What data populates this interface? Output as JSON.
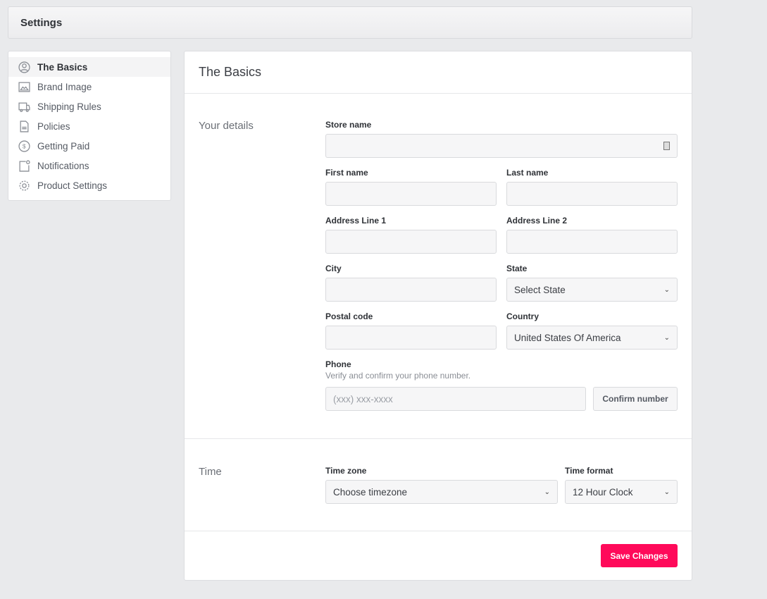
{
  "header": {
    "title": "Settings"
  },
  "sidebar": {
    "items": [
      {
        "label": "The Basics",
        "icon": "user-circle-icon"
      },
      {
        "label": "Brand Image",
        "icon": "image-icon"
      },
      {
        "label": "Shipping Rules",
        "icon": "truck-icon"
      },
      {
        "label": "Policies",
        "icon": "document-icon"
      },
      {
        "label": "Getting Paid",
        "icon": "dollar-circle-icon"
      },
      {
        "label": "Notifications",
        "icon": "notification-icon"
      },
      {
        "label": "Product Settings",
        "icon": "gear-icon"
      }
    ]
  },
  "main": {
    "title": "The Basics",
    "details": {
      "label": "Your details",
      "store_name": "Store name",
      "first_name": "First name",
      "last_name": "Last name",
      "address1": "Address Line 1",
      "address2": "Address Line 2",
      "city": "City",
      "state": "State",
      "state_value": "Select State",
      "postal": "Postal code",
      "country": "Country",
      "country_value": "United States Of America",
      "phone": "Phone",
      "phone_help": "Verify and confirm your phone number.",
      "phone_placeholder": "(xxx) xxx-xxxx",
      "confirm": "Confirm number"
    },
    "time": {
      "label": "Time",
      "timezone": "Time zone",
      "timezone_value": "Choose timezone",
      "format": "Time format",
      "format_value": "12 Hour Clock"
    },
    "save": "Save Changes"
  },
  "colors": {
    "accent": "#ff0a5a"
  }
}
